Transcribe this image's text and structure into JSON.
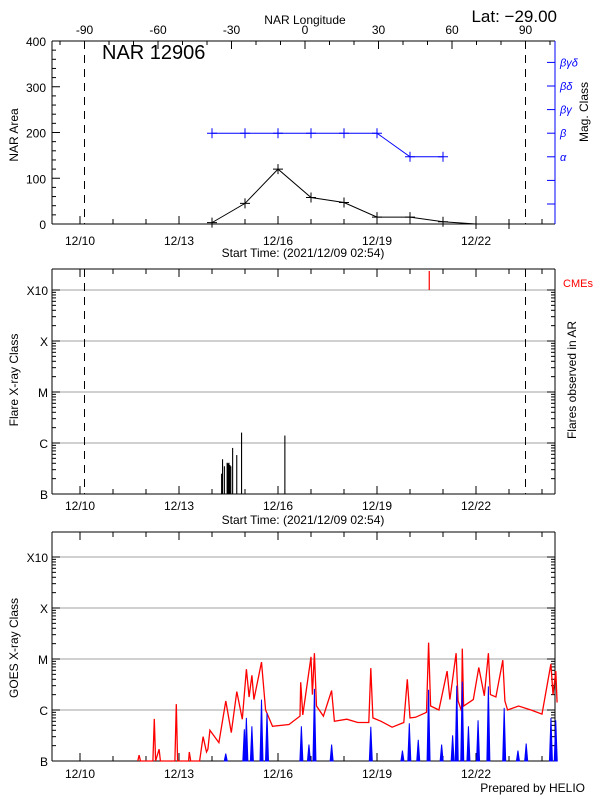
{
  "header": {
    "lat_label": "Lat: −29.00",
    "prepared_by": "Prepared by HELIO"
  },
  "colors": {
    "axis": "#000000",
    "grid": "#a0a0a0",
    "mag_class": "#0000ff",
    "cme": "#ff0000",
    "goes_long": "#ff0000",
    "goes_short": "#0000ff"
  },
  "chart_data": [
    {
      "type": "line",
      "title": "NAR 12906",
      "top_xlabel": "NAR Longitude",
      "top_xticks": [
        -90,
        -60,
        -30,
        0,
        30,
        60,
        90
      ],
      "limb_longitudes": [
        -90,
        90
      ],
      "xlabel": "Start Time: (2021/12/09 02:54)",
      "xticks": [
        "12/10",
        "12/13",
        "12/16",
        "12/19",
        "12/22"
      ],
      "ylabel": "NAR Area",
      "ylim": [
        0,
        400
      ],
      "yticks": [
        0,
        100,
        200,
        300,
        400
      ],
      "y2label": "Mag. Class",
      "y2ticks": [
        "α",
        "β",
        "βγ",
        "βδ",
        "βγδ"
      ],
      "x": [
        "12/14",
        "12/15",
        "12/16",
        "12/17",
        "12/18",
        "12/19",
        "12/20",
        "12/21",
        "12/22",
        "12/23"
      ],
      "series": [
        {
          "axis": "left",
          "color": "#000000",
          "values": [
            3,
            45,
            120,
            58,
            47,
            15,
            15,
            5,
            0,
            0
          ]
        },
        {
          "axis": "right",
          "color": "#0000ff",
          "values": [
            "β",
            "β",
            "β",
            "β",
            "β",
            "β",
            "α",
            "α",
            null,
            null
          ]
        }
      ]
    },
    {
      "type": "bar",
      "limb_longitudes": [
        -90,
        90
      ],
      "xlabel": "Start Time: (2021/12/09 02:54)",
      "xticks": [
        "12/10",
        "12/13",
        "12/16",
        "12/19",
        "12/22"
      ],
      "ylabel": "Flare X-ray Class",
      "y2label": "Flares observed in AR",
      "yticks": [
        "B",
        "C",
        "M",
        "X",
        "X10"
      ],
      "grid": true,
      "cme_label": "CMEs",
      "cmes": [
        "12/20 14:00"
      ],
      "flares": [
        {
          "t": "12/14 07:00",
          "class": "B2.5"
        },
        {
          "t": "12/14 07:40",
          "class": "B4.8"
        },
        {
          "t": "12/14 09:00",
          "class": "B3.5"
        },
        {
          "t": "12/14 11:00",
          "class": "B4.1"
        },
        {
          "t": "12/14 11:40",
          "class": "B4.0"
        },
        {
          "t": "12/14 12:20",
          "class": "B4.1"
        },
        {
          "t": "12/14 13:00",
          "class": "B3.7"
        },
        {
          "t": "12/14 13:40",
          "class": "B3.5"
        },
        {
          "t": "12/14 15:00",
          "class": "B8.0"
        },
        {
          "t": "12/14 18:00",
          "class": "B5.8"
        },
        {
          "t": "12/14 21:30",
          "class": "C1.6"
        },
        {
          "t": "12/16 05:00",
          "class": "C1.4"
        }
      ]
    },
    {
      "type": "line",
      "xlabel": "",
      "xticks": [
        "12/10",
        "12/13",
        "12/16",
        "12/19",
        "12/22"
      ],
      "ylabel": "GOES X-ray Class",
      "yticks": [
        "B",
        "C",
        "M",
        "X",
        "X10"
      ],
      "grid": true,
      "series": [
        {
          "color": "#ff0000",
          "points": [
            [
              "12/11 18:00",
              "B0.5"
            ],
            [
              "12/11 19:00",
              "B1.3"
            ],
            [
              "12/11 20:00",
              "B0.5"
            ],
            [
              "12/12 05:00",
              "B0.5"
            ],
            [
              "12/12 06:00",
              "B6.7"
            ],
            [
              "12/12 07:00",
              "B0.5"
            ],
            [
              "12/12 09:30",
              "B1.7"
            ],
            [
              "12/12 10:30",
              "B0.5"
            ],
            [
              "12/12 21:00",
              "B0.5"
            ],
            [
              "12/12 22:00",
              "C1.3"
            ],
            [
              "12/12 23:00",
              "B0.5"
            ],
            [
              "12/13 07:00",
              "B0.5"
            ],
            [
              "12/13 07:30",
              "B1.5"
            ],
            [
              "12/13 08:30",
              "B0.5"
            ],
            [
              "12/13 15:00",
              "B0.8"
            ],
            [
              "12/13 17:30",
              "B3"
            ],
            [
              "12/13 20:00",
              "B1.5"
            ],
            [
              "12/13 21:00",
              "B1.7"
            ],
            [
              "12/13 22:30",
              "B4"
            ],
            [
              "12/14 05:00",
              "B2.3"
            ],
            [
              "12/14 10:00",
              "C1.5"
            ],
            [
              "12/14 14:00",
              "B3.6"
            ],
            [
              "12/14 18:00",
              "C2.3"
            ],
            [
              "12/14 22:00",
              "B6.6"
            ],
            [
              "12/15 01:00",
              "C6.3"
            ],
            [
              "12/15 03:00",
              "C1.8"
            ],
            [
              "12/15 05:00",
              "C4.8"
            ],
            [
              "12/15 06:30",
              "C1.6"
            ],
            [
              "12/15 12:00",
              "C8.7"
            ],
            [
              "12/15 15:00",
              "C1.0"
            ],
            [
              "12/15 20:00",
              "B4.8"
            ],
            [
              "12/16 08:00",
              "B5.2"
            ],
            [
              "12/16 16:00",
              "B7.6"
            ],
            [
              "12/16 16:30",
              "C3.5"
            ],
            [
              "12/16 18:00",
              "B8"
            ],
            [
              "12/17 00:00",
              "M1.1"
            ],
            [
              "12/17 01:00",
              "C2"
            ],
            [
              "12/17 02:30",
              "M1.3"
            ],
            [
              "12/17 04:00",
              "C1.2"
            ],
            [
              "12/17 09:00",
              "B7.6"
            ],
            [
              "12/17 15:00",
              "C2.4"
            ],
            [
              "12/17 17:00",
              "B6"
            ],
            [
              "12/18 02:00",
              "B6.6"
            ],
            [
              "12/18 10:00",
              "B5.7"
            ],
            [
              "12/18 18:00",
              "B5.7"
            ],
            [
              "12/18 19:30",
              "C6.6"
            ],
            [
              "12/18 21:00",
              "B7"
            ],
            [
              "12/19 03:00",
              "B6"
            ],
            [
              "12/19 11:00",
              "B4.6"
            ],
            [
              "12/19 19:30",
              "B5.7"
            ],
            [
              "12/19 22:00",
              "C4"
            ],
            [
              "12/20 00:00",
              "B7"
            ],
            [
              "12/20 04:00",
              "B7.2"
            ],
            [
              "12/20 12:00",
              "B9"
            ],
            [
              "12/20 13:30",
              "M2.1"
            ],
            [
              "12/20 15:00",
              "C1.2"
            ],
            [
              "12/20 21:00",
              "C1.0"
            ],
            [
              "12/21 03:00",
              "C5.8"
            ],
            [
              "12/21 05:00",
              "C1.6"
            ],
            [
              "12/21 09:30",
              "M1.3"
            ],
            [
              "12/21 11:00",
              "C1.5"
            ],
            [
              "12/21 13:30",
              "B9.5"
            ],
            [
              "12/21 14:00",
              "M1.6"
            ],
            [
              "12/21 15:00",
              "C1.2"
            ],
            [
              "12/21 22:00",
              "C1.6"
            ],
            [
              "12/22 02:00",
              "C6.8"
            ],
            [
              "12/22 06:00",
              "C1.9"
            ],
            [
              "12/22 09:00",
              "M1.3"
            ],
            [
              "12/22 10:30",
              "C2"
            ],
            [
              "12/22 14:30",
              "C1.8"
            ],
            [
              "12/22 19:30",
              "C9.5"
            ],
            [
              "12/22 21:00",
              "C1.5"
            ],
            [
              "12/22 23:00",
              "C1.0"
            ],
            [
              "12/23 07:00",
              "C1.2"
            ],
            [
              "12/23 16:00",
              "C1.0"
            ],
            [
              "12/24 00:00",
              "B8.3"
            ],
            [
              "12/24 06:30",
              "C8"
            ],
            [
              "12/24 08:00",
              "C2"
            ],
            [
              "12/24 10:00",
              "C5.8"
            ],
            [
              "12/24 11:00",
              "C1.4"
            ]
          ]
        },
        {
          "color": "#0000ff",
          "points": [
            [
              "12/14 10:00",
              "B1.4"
            ],
            [
              "12/14 23:30",
              "B4.2"
            ],
            [
              "12/15 01:00",
              "B7"
            ],
            [
              "12/15 05:00",
              "B4.8"
            ],
            [
              "12/15 12:00",
              "C1.6"
            ],
            [
              "12/15 16:00",
              "B8.7"
            ],
            [
              "12/16 17:00",
              "B4.8"
            ],
            [
              "12/16 22:30",
              "B2.1"
            ],
            [
              "12/17 02:30",
              "C2.6"
            ],
            [
              "12/17 15:00",
              "B2.1"
            ],
            [
              "12/18 19:30",
              "B4.7"
            ],
            [
              "12/19 18:30",
              "B1.6"
            ],
            [
              "12/19 23:30",
              "B5.5"
            ],
            [
              "12/20 06:00",
              "B2.6"
            ],
            [
              "12/20 13:30",
              "C2.5"
            ],
            [
              "12/20 23:00",
              "B2.1"
            ],
            [
              "12/21 07:00",
              "B3.2"
            ],
            [
              "12/21 10:00",
              "C3"
            ],
            [
              "12/21 14:00",
              "C3.6"
            ],
            [
              "12/21 18:30",
              "B4.8"
            ],
            [
              "12/22 01:30",
              "B6.3"
            ],
            [
              "12/22 09:00",
              "C2.9"
            ],
            [
              "12/22 20:30",
              "C1.1"
            ],
            [
              "12/23 06:30",
              "B1.6"
            ],
            [
              "12/23 12:30",
              "B2.2"
            ],
            [
              "12/24 06:30",
              "B7"
            ],
            [
              "12/24 10:00",
              "B6.3"
            ]
          ]
        }
      ]
    }
  ]
}
